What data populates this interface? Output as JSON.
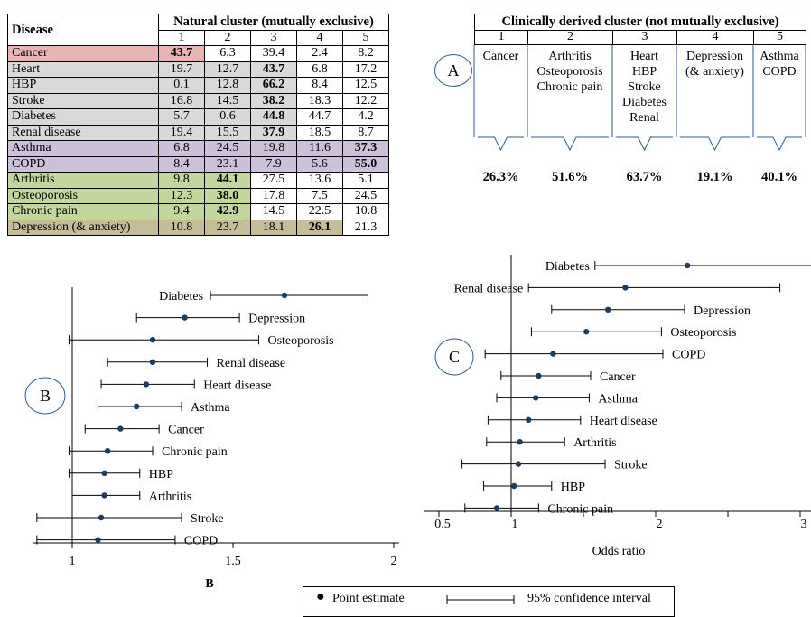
{
  "natural_table": {
    "disease_header": "Disease",
    "title": "Natural cluster (mutually exclusive)",
    "cluster_numbers": [
      "1",
      "2",
      "3",
      "4",
      "5"
    ],
    "rows": [
      {
        "name": "Cancer",
        "values": [
          "43.7",
          "6.3",
          "39.4",
          "2.4",
          "8.2"
        ],
        "bold": 0,
        "color": "#e8b4b4",
        "shade": 1
      },
      {
        "name": "Heart",
        "values": [
          "19.7",
          "12.7",
          "43.7",
          "6.8",
          "17.2"
        ],
        "bold": 2,
        "color": "#d9d9d9",
        "shade": 3
      },
      {
        "name": "HBP",
        "values": [
          "0.1",
          "12.8",
          "66.2",
          "8.4",
          "12.5"
        ],
        "bold": 2,
        "color": "#d9d9d9",
        "shade": 3
      },
      {
        "name": "Stroke",
        "values": [
          "16.8",
          "14.5",
          "38.2",
          "18.3",
          "12.2"
        ],
        "bold": 2,
        "color": "#d9d9d9",
        "shade": 3
      },
      {
        "name": "Diabetes",
        "values": [
          "5.7",
          "0.6",
          "44.8",
          "44.7",
          "4.2"
        ],
        "bold": 2,
        "color": "#d9d9d9",
        "shade": 3
      },
      {
        "name": "Renal disease",
        "values": [
          "19.4",
          "15.5",
          "37.9",
          "18.5",
          "8.7"
        ],
        "bold": 2,
        "color": "#d9d9d9",
        "shade": 3
      },
      {
        "name": "Asthma",
        "values": [
          "6.8",
          "24.5",
          "19.8",
          "11.6",
          "37.3"
        ],
        "bold": 4,
        "color": "#ccc0da",
        "shade": 5
      },
      {
        "name": "COPD",
        "values": [
          "8.4",
          "23.1",
          "7.9",
          "5.6",
          "55.0"
        ],
        "bold": 4,
        "color": "#ccc0da",
        "shade": 5
      },
      {
        "name": "Arthritis",
        "values": [
          "9.8",
          "44.1",
          "27.5",
          "13.6",
          "5.1"
        ],
        "bold": 1,
        "color": "#c3d69b",
        "shade": 2
      },
      {
        "name": "Osteoporosis",
        "values": [
          "12.3",
          "38.0",
          "17.8",
          "7.5",
          "24.5"
        ],
        "bold": 1,
        "color": "#c3d69b",
        "shade": 2
      },
      {
        "name": "Chronic pain",
        "values": [
          "9.4",
          "42.9",
          "14.5",
          "22.5",
          "10.8"
        ],
        "bold": 1,
        "color": "#c3d69b",
        "shade": 2
      },
      {
        "name": "Depression (& anxiety)",
        "values": [
          "10.8",
          "23.7",
          "18.1",
          "26.1",
          "21.3"
        ],
        "bold": 3,
        "color": "#c4bd97",
        "shade": 4
      }
    ]
  },
  "clinical": {
    "title": "Clinically derived cluster (not mutually exclusive)",
    "panel_label": "A",
    "clusters": [
      {
        "num": "1",
        "lines": [
          "Cancer"
        ],
        "pct": "26.3%"
      },
      {
        "num": "2",
        "lines": [
          "Arthritis",
          "Osteoporosis",
          "Chronic pain"
        ],
        "pct": "51.6%"
      },
      {
        "num": "3",
        "lines": [
          "Heart",
          "HBP",
          "Stroke",
          "Diabetes",
          "Renal"
        ],
        "pct": "63.7%"
      },
      {
        "num": "4",
        "lines": [
          "Depression",
          "(& anxiety)"
        ],
        "pct": "19.1%"
      },
      {
        "num": "5",
        "lines": [
          "Asthma",
          "COPD"
        ],
        "pct": "40.1%"
      }
    ]
  },
  "chart_data": [
    {
      "type": "forest",
      "panel_label": "B",
      "caption": "B",
      "xlim": [
        0.88,
        2.02
      ],
      "xticks": [
        "1",
        "1.5",
        "2"
      ],
      "reference_line": 1,
      "items": [
        {
          "label": "Diabetes",
          "est": 1.66,
          "lo": 1.43,
          "hi": 1.92
        },
        {
          "label": "Depression",
          "est": 1.35,
          "lo": 1.2,
          "hi": 1.52
        },
        {
          "label": "Osteoporosis",
          "est": 1.25,
          "lo": 0.99,
          "hi": 1.58
        },
        {
          "label": "Renal disease",
          "est": 1.25,
          "lo": 1.11,
          "hi": 1.42
        },
        {
          "label": "Heart disease",
          "est": 1.23,
          "lo": 1.09,
          "hi": 1.38
        },
        {
          "label": "Asthma",
          "est": 1.2,
          "lo": 1.08,
          "hi": 1.34
        },
        {
          "label": "Cancer",
          "est": 1.15,
          "lo": 1.04,
          "hi": 1.27
        },
        {
          "label": "Chronic pain",
          "est": 1.11,
          "lo": 0.99,
          "hi": 1.25
        },
        {
          "label": "HBP",
          "est": 1.1,
          "lo": 0.99,
          "hi": 1.21
        },
        {
          "label": "Arthritis",
          "est": 1.1,
          "lo": 1.0,
          "hi": 1.21
        },
        {
          "label": "Stroke",
          "est": 1.09,
          "lo": 0.89,
          "hi": 1.34
        },
        {
          "label": "COPD",
          "est": 1.08,
          "lo": 0.89,
          "hi": 1.32
        }
      ]
    },
    {
      "type": "forest",
      "panel_label": "C",
      "xlabel": "Odds ratio",
      "xlim": [
        0.46,
        3.08
      ],
      "xticks": [
        "0.5",
        "1",
        "2",
        "3"
      ],
      "reference_line": 1,
      "items": [
        {
          "label": "Diabetes",
          "est": 2.22,
          "lo": 1.58,
          "hi": 3.08
        },
        {
          "label": "Renal disease",
          "est": 1.79,
          "lo": 1.12,
          "hi": 2.86
        },
        {
          "label": "Depression",
          "est": 1.67,
          "lo": 1.28,
          "hi": 2.2
        },
        {
          "label": "Osteoporosis",
          "est": 1.52,
          "lo": 1.14,
          "hi": 2.04
        },
        {
          "label": "COPD",
          "est": 1.29,
          "lo": 0.82,
          "hi": 2.05
        },
        {
          "label": "Cancer",
          "est": 1.19,
          "lo": 0.93,
          "hi": 1.55
        },
        {
          "label": "Asthma",
          "est": 1.17,
          "lo": 0.9,
          "hi": 1.54
        },
        {
          "label": "Heart disease",
          "est": 1.12,
          "lo": 0.84,
          "hi": 1.48
        },
        {
          "label": "Arthritis",
          "est": 1.06,
          "lo": 0.83,
          "hi": 1.37
        },
        {
          "label": "Stroke",
          "est": 1.05,
          "lo": 0.66,
          "hi": 1.65
        },
        {
          "label": "HBP",
          "est": 1.02,
          "lo": 0.81,
          "hi": 1.28
        },
        {
          "label": "Chronic pain",
          "est": 0.9,
          "lo": 0.68,
          "hi": 1.19
        }
      ]
    }
  ],
  "legend": {
    "point_label": "Point estimate",
    "ci_label": "95% confidence interval"
  }
}
